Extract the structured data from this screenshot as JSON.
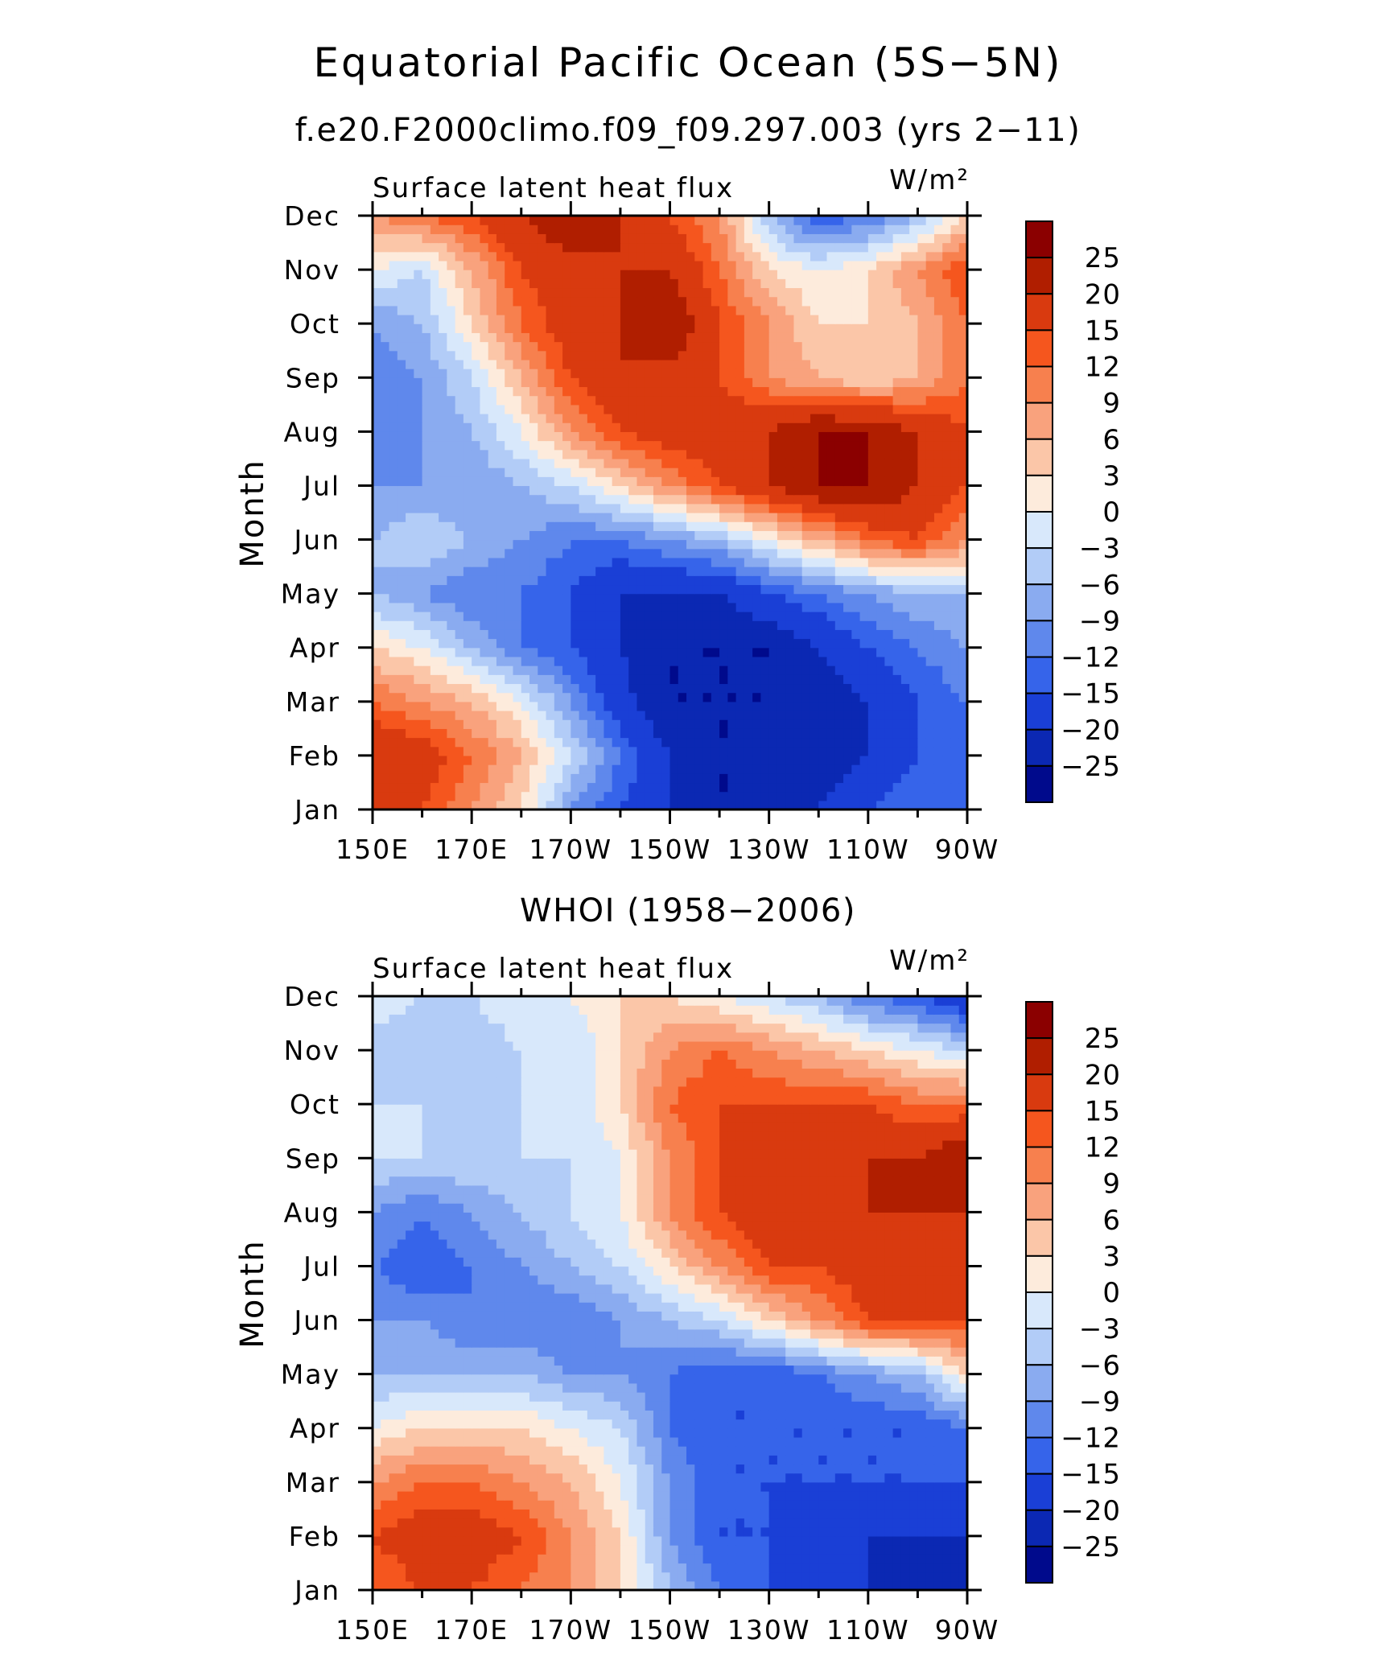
{
  "title": "Equatorial Pacific Ocean (5S−5N)",
  "chart_data": [
    {
      "type": "heatmap",
      "title": "f.e20.F2000climo.f09_f09.297.003 (yrs 2−11)",
      "left_label": "Surface latent heat flux",
      "units_label": "W/m²",
      "ylabel": "Month",
      "x_categories": [
        "150E",
        "170E",
        "170W",
        "150W",
        "130W",
        "110W",
        "90W"
      ],
      "y_categories": [
        "Jan",
        "Feb",
        "Mar",
        "Apr",
        "May",
        "Jun",
        "Jul",
        "Aug",
        "Sep",
        "Oct",
        "Nov",
        "Dec"
      ],
      "colorbar": {
        "levels": [
          "25",
          "20",
          "15",
          "12",
          "9",
          "6",
          "3",
          "0",
          "−3",
          "−6",
          "−9",
          "−12",
          "−15",
          "−20",
          "−25"
        ],
        "colors": [
          "#8b0000",
          "#b01e00",
          "#d93a0f",
          "#f5561e",
          "#f7804e",
          "#f9a27d",
          "#fbc6a8",
          "#fdebdc",
          "#d8e8fb",
          "#b2ccf7",
          "#8aabf0",
          "#5f88ec",
          "#3664ea",
          "#1a3fd6",
          "#0b28b3",
          "#000a8c"
        ]
      },
      "values": [
        [
          20,
          15,
          9,
          3,
          -9,
          -15,
          -20,
          -25,
          -25,
          -20,
          -15,
          -12,
          -12
        ],
        [
          20,
          18,
          12,
          6,
          -3,
          -12,
          -20,
          -25,
          -25,
          -25,
          -20,
          -15,
          -12
        ],
        [
          12,
          9,
          6,
          0,
          -9,
          -18,
          -25,
          -25,
          -25,
          -25,
          -20,
          -15,
          -12
        ],
        [
          3,
          0,
          -6,
          -12,
          -15,
          -20,
          -25,
          -25,
          -25,
          -20,
          -15,
          -12,
          -9
        ],
        [
          -6,
          -9,
          -12,
          -12,
          -15,
          -20,
          -20,
          -20,
          -15,
          -12,
          -9,
          -6,
          -6
        ],
        [
          -6,
          -3,
          -6,
          -9,
          -12,
          -12,
          -9,
          -6,
          0,
          6,
          12,
          15,
          9
        ],
        [
          -9,
          -9,
          -9,
          -6,
          -3,
          3,
          9,
          15,
          20,
          25,
          25,
          20,
          15
        ],
        [
          -12,
          -9,
          -6,
          0,
          9,
          15,
          18,
          18,
          20,
          25,
          25,
          20,
          15
        ],
        [
          -12,
          -9,
          -3,
          6,
          15,
          20,
          18,
          15,
          9,
          6,
          3,
          6,
          12
        ],
        [
          -9,
          -6,
          3,
          12,
          18,
          20,
          25,
          15,
          9,
          3,
          3,
          6,
          12
        ],
        [
          0,
          -3,
          6,
          15,
          18,
          20,
          20,
          12,
          3,
          0,
          3,
          9,
          15
        ],
        [
          9,
          12,
          15,
          20,
          25,
          20,
          15,
          9,
          -6,
          -15,
          -12,
          -6,
          3
        ]
      ]
    },
    {
      "type": "heatmap",
      "title": "WHOI (1958−2006)",
      "left_label": "Surface latent heat flux",
      "units_label": "W/m²",
      "ylabel": "Month",
      "x_categories": [
        "150E",
        "170E",
        "170W",
        "150W",
        "130W",
        "110W",
        "90W"
      ],
      "y_categories": [
        "Jan",
        "Feb",
        "Mar",
        "Apr",
        "May",
        "Jun",
        "Jul",
        "Aug",
        "Sep",
        "Oct",
        "Nov",
        "Dec"
      ],
      "colorbar": {
        "levels": [
          "25",
          "20",
          "15",
          "12",
          "9",
          "6",
          "3",
          "0",
          "−3",
          "−6",
          "−9",
          "−12",
          "−15",
          "−20",
          "−25"
        ],
        "colors": [
          "#8b0000",
          "#b01e00",
          "#d93a0f",
          "#f5561e",
          "#f7804e",
          "#f9a27d",
          "#fbc6a8",
          "#fdebdc",
          "#d8e8fb",
          "#b2ccf7",
          "#8aabf0",
          "#5f88ec",
          "#3664ea",
          "#1a3fd6",
          "#0b28b3",
          "#000a8c"
        ]
      },
      "values": [
        [
          12,
          15,
          15,
          12,
          9,
          3,
          -6,
          -12,
          -15,
          -20,
          -20,
          -25,
          -25
        ],
        [
          15,
          18,
          18,
          15,
          9,
          3,
          -9,
          -15,
          -15,
          -20,
          -20,
          -20,
          -20
        ],
        [
          9,
          12,
          12,
          9,
          6,
          0,
          -9,
          -15,
          -15,
          -15,
          -15,
          -15,
          -15
        ],
        [
          0,
          3,
          3,
          3,
          0,
          -3,
          -12,
          -15,
          -15,
          -15,
          -15,
          -15,
          -12
        ],
        [
          -6,
          -6,
          -6,
          -6,
          -9,
          -9,
          -12,
          -15,
          -15,
          -12,
          -9,
          -6,
          3
        ],
        [
          -9,
          -9,
          -12,
          -12,
          -12,
          -9,
          -6,
          -3,
          3,
          9,
          15,
          15,
          15
        ],
        [
          -12,
          -15,
          -12,
          -9,
          -6,
          -3,
          3,
          9,
          15,
          15,
          18,
          18,
          20
        ],
        [
          -9,
          -12,
          -9,
          -6,
          -3,
          0,
          9,
          15,
          20,
          15,
          20,
          20,
          20
        ],
        [
          -3,
          -3,
          -3,
          -3,
          -3,
          0,
          9,
          15,
          18,
          15,
          20,
          20,
          25
        ],
        [
          -3,
          -3,
          -6,
          -3,
          -3,
          3,
          12,
          15,
          15,
          15,
          15,
          12,
          12
        ],
        [
          -6,
          -6,
          -6,
          -3,
          -3,
          3,
          9,
          12,
          9,
          6,
          3,
          0,
          -3
        ],
        [
          0,
          -3,
          -3,
          0,
          0,
          3,
          3,
          0,
          -3,
          -6,
          -12,
          -15,
          -20
        ]
      ]
    }
  ]
}
